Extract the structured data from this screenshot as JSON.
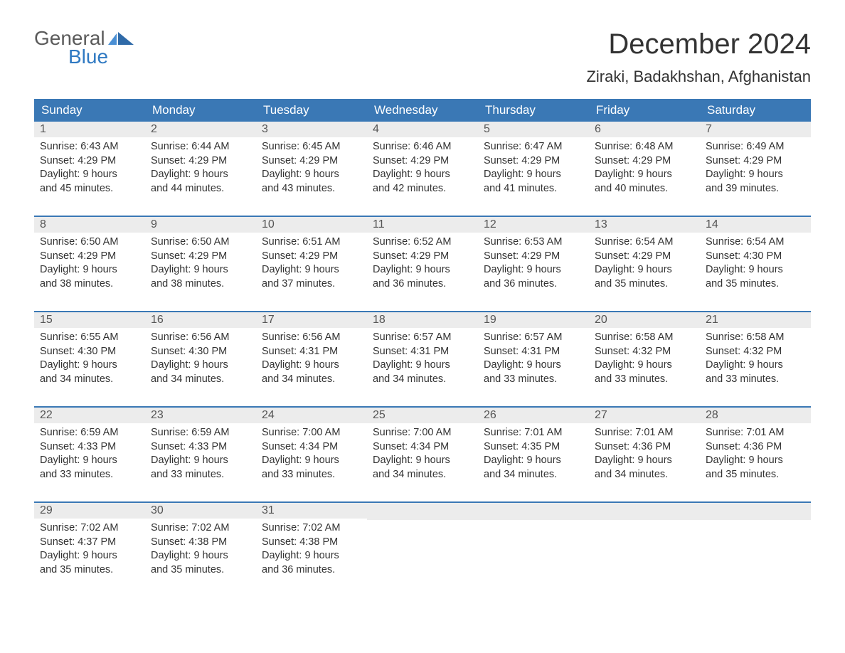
{
  "logo": {
    "general": "General",
    "blue": "Blue"
  },
  "title": "December 2024",
  "location": "Ziraki, Badakhshan, Afghanistan",
  "colors": {
    "header_bg": "#3a78b5",
    "header_text": "#ffffff",
    "daynum_bg": "#ececec",
    "body_text": "#333333",
    "logo_gray": "#5a5a5a",
    "logo_blue": "#2f79c2",
    "week_border": "#3a78b5",
    "page_bg": "#ffffff"
  },
  "typography": {
    "title_fontsize": 40,
    "location_fontsize": 22,
    "weekday_fontsize": 17,
    "daynum_fontsize": 16,
    "content_fontsize": 14.5,
    "logo_fontsize": 28
  },
  "weekdays": [
    "Sunday",
    "Monday",
    "Tuesday",
    "Wednesday",
    "Thursday",
    "Friday",
    "Saturday"
  ],
  "weeks": [
    [
      {
        "num": "1",
        "sunrise": "Sunrise: 6:43 AM",
        "sunset": "Sunset: 4:29 PM",
        "day1": "Daylight: 9 hours",
        "day2": "and 45 minutes."
      },
      {
        "num": "2",
        "sunrise": "Sunrise: 6:44 AM",
        "sunset": "Sunset: 4:29 PM",
        "day1": "Daylight: 9 hours",
        "day2": "and 44 minutes."
      },
      {
        "num": "3",
        "sunrise": "Sunrise: 6:45 AM",
        "sunset": "Sunset: 4:29 PM",
        "day1": "Daylight: 9 hours",
        "day2": "and 43 minutes."
      },
      {
        "num": "4",
        "sunrise": "Sunrise: 6:46 AM",
        "sunset": "Sunset: 4:29 PM",
        "day1": "Daylight: 9 hours",
        "day2": "and 42 minutes."
      },
      {
        "num": "5",
        "sunrise": "Sunrise: 6:47 AM",
        "sunset": "Sunset: 4:29 PM",
        "day1": "Daylight: 9 hours",
        "day2": "and 41 minutes."
      },
      {
        "num": "6",
        "sunrise": "Sunrise: 6:48 AM",
        "sunset": "Sunset: 4:29 PM",
        "day1": "Daylight: 9 hours",
        "day2": "and 40 minutes."
      },
      {
        "num": "7",
        "sunrise": "Sunrise: 6:49 AM",
        "sunset": "Sunset: 4:29 PM",
        "day1": "Daylight: 9 hours",
        "day2": "and 39 minutes."
      }
    ],
    [
      {
        "num": "8",
        "sunrise": "Sunrise: 6:50 AM",
        "sunset": "Sunset: 4:29 PM",
        "day1": "Daylight: 9 hours",
        "day2": "and 38 minutes."
      },
      {
        "num": "9",
        "sunrise": "Sunrise: 6:50 AM",
        "sunset": "Sunset: 4:29 PM",
        "day1": "Daylight: 9 hours",
        "day2": "and 38 minutes."
      },
      {
        "num": "10",
        "sunrise": "Sunrise: 6:51 AM",
        "sunset": "Sunset: 4:29 PM",
        "day1": "Daylight: 9 hours",
        "day2": "and 37 minutes."
      },
      {
        "num": "11",
        "sunrise": "Sunrise: 6:52 AM",
        "sunset": "Sunset: 4:29 PM",
        "day1": "Daylight: 9 hours",
        "day2": "and 36 minutes."
      },
      {
        "num": "12",
        "sunrise": "Sunrise: 6:53 AM",
        "sunset": "Sunset: 4:29 PM",
        "day1": "Daylight: 9 hours",
        "day2": "and 36 minutes."
      },
      {
        "num": "13",
        "sunrise": "Sunrise: 6:54 AM",
        "sunset": "Sunset: 4:29 PM",
        "day1": "Daylight: 9 hours",
        "day2": "and 35 minutes."
      },
      {
        "num": "14",
        "sunrise": "Sunrise: 6:54 AM",
        "sunset": "Sunset: 4:30 PM",
        "day1": "Daylight: 9 hours",
        "day2": "and 35 minutes."
      }
    ],
    [
      {
        "num": "15",
        "sunrise": "Sunrise: 6:55 AM",
        "sunset": "Sunset: 4:30 PM",
        "day1": "Daylight: 9 hours",
        "day2": "and 34 minutes."
      },
      {
        "num": "16",
        "sunrise": "Sunrise: 6:56 AM",
        "sunset": "Sunset: 4:30 PM",
        "day1": "Daylight: 9 hours",
        "day2": "and 34 minutes."
      },
      {
        "num": "17",
        "sunrise": "Sunrise: 6:56 AM",
        "sunset": "Sunset: 4:31 PM",
        "day1": "Daylight: 9 hours",
        "day2": "and 34 minutes."
      },
      {
        "num": "18",
        "sunrise": "Sunrise: 6:57 AM",
        "sunset": "Sunset: 4:31 PM",
        "day1": "Daylight: 9 hours",
        "day2": "and 34 minutes."
      },
      {
        "num": "19",
        "sunrise": "Sunrise: 6:57 AM",
        "sunset": "Sunset: 4:31 PM",
        "day1": "Daylight: 9 hours",
        "day2": "and 33 minutes."
      },
      {
        "num": "20",
        "sunrise": "Sunrise: 6:58 AM",
        "sunset": "Sunset: 4:32 PM",
        "day1": "Daylight: 9 hours",
        "day2": "and 33 minutes."
      },
      {
        "num": "21",
        "sunrise": "Sunrise: 6:58 AM",
        "sunset": "Sunset: 4:32 PM",
        "day1": "Daylight: 9 hours",
        "day2": "and 33 minutes."
      }
    ],
    [
      {
        "num": "22",
        "sunrise": "Sunrise: 6:59 AM",
        "sunset": "Sunset: 4:33 PM",
        "day1": "Daylight: 9 hours",
        "day2": "and 33 minutes."
      },
      {
        "num": "23",
        "sunrise": "Sunrise: 6:59 AM",
        "sunset": "Sunset: 4:33 PM",
        "day1": "Daylight: 9 hours",
        "day2": "and 33 minutes."
      },
      {
        "num": "24",
        "sunrise": "Sunrise: 7:00 AM",
        "sunset": "Sunset: 4:34 PM",
        "day1": "Daylight: 9 hours",
        "day2": "and 33 minutes."
      },
      {
        "num": "25",
        "sunrise": "Sunrise: 7:00 AM",
        "sunset": "Sunset: 4:34 PM",
        "day1": "Daylight: 9 hours",
        "day2": "and 34 minutes."
      },
      {
        "num": "26",
        "sunrise": "Sunrise: 7:01 AM",
        "sunset": "Sunset: 4:35 PM",
        "day1": "Daylight: 9 hours",
        "day2": "and 34 minutes."
      },
      {
        "num": "27",
        "sunrise": "Sunrise: 7:01 AM",
        "sunset": "Sunset: 4:36 PM",
        "day1": "Daylight: 9 hours",
        "day2": "and 34 minutes."
      },
      {
        "num": "28",
        "sunrise": "Sunrise: 7:01 AM",
        "sunset": "Sunset: 4:36 PM",
        "day1": "Daylight: 9 hours",
        "day2": "and 35 minutes."
      }
    ],
    [
      {
        "num": "29",
        "sunrise": "Sunrise: 7:02 AM",
        "sunset": "Sunset: 4:37 PM",
        "day1": "Daylight: 9 hours",
        "day2": "and 35 minutes."
      },
      {
        "num": "30",
        "sunrise": "Sunrise: 7:02 AM",
        "sunset": "Sunset: 4:38 PM",
        "day1": "Daylight: 9 hours",
        "day2": "and 35 minutes."
      },
      {
        "num": "31",
        "sunrise": "Sunrise: 7:02 AM",
        "sunset": "Sunset: 4:38 PM",
        "day1": "Daylight: 9 hours",
        "day2": "and 36 minutes."
      },
      {
        "empty": true
      },
      {
        "empty": true
      },
      {
        "empty": true
      },
      {
        "empty": true
      }
    ]
  ]
}
